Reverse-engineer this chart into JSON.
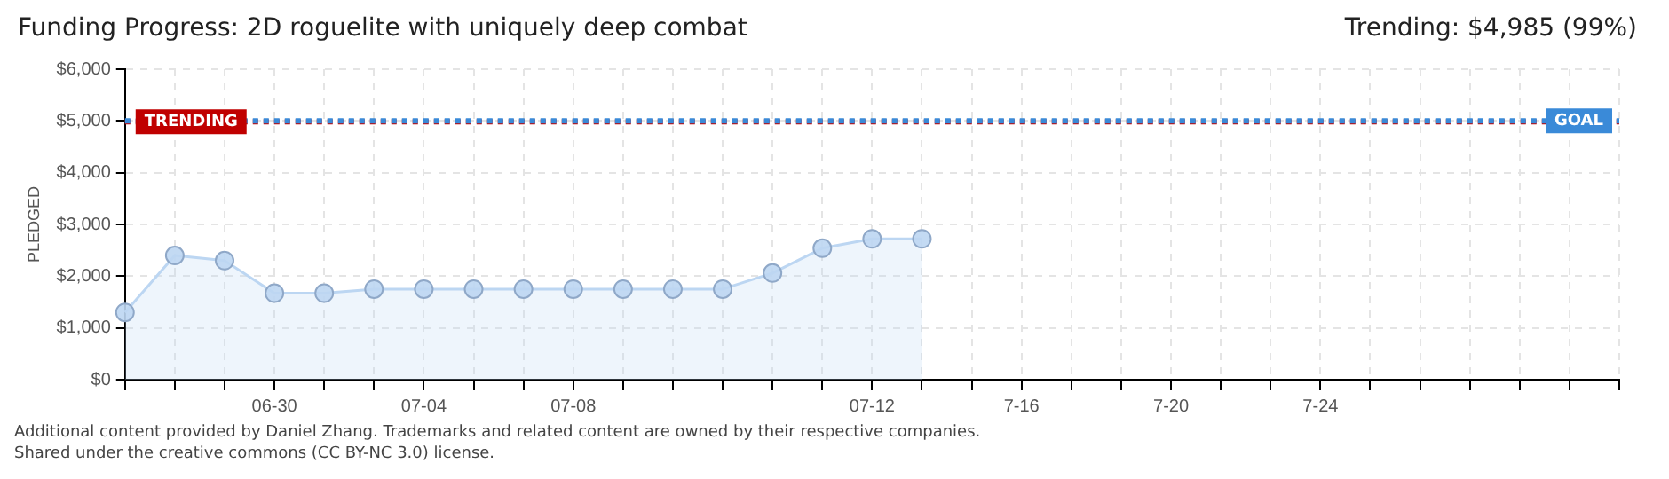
{
  "chart_data": {
    "type": "area",
    "title": "Funding Progress: 2D roguelite with uniquely deep combat",
    "ylabel": "PLEDGED",
    "categories": [
      null,
      null,
      null,
      "06-30",
      null,
      null,
      "07-04",
      null,
      null,
      "07-08",
      null,
      null,
      null,
      null,
      null,
      "07-12",
      null,
      null,
      "7-16",
      null,
      null,
      "7-20",
      null,
      null,
      "7-24",
      null,
      null,
      null,
      null,
      null,
      null
    ],
    "series": [
      {
        "color": "#bcd6f2",
        "values": [
          1300,
          2400,
          2300,
          1670,
          1670,
          1750,
          1750,
          1750,
          1750,
          1750,
          1750,
          1750,
          1750,
          2060,
          2540,
          2720,
          2720,
          null,
          null,
          null,
          null,
          null,
          null,
          null,
          null,
          null,
          null,
          null,
          null,
          null,
          null
        ]
      }
    ],
    "ylim": [
      0,
      6000
    ],
    "yticks": [
      {
        "value": 0,
        "label": "$0"
      },
      {
        "value": 1000,
        "label": "$1,000"
      },
      {
        "value": 2000,
        "label": "$2,000"
      },
      {
        "value": 3000,
        "label": "$3,000"
      },
      {
        "value": 4000,
        "label": "$4,000"
      },
      {
        "value": 5000,
        "label": "$5,000"
      },
      {
        "value": 6000,
        "label": "$6,000"
      }
    ],
    "ref_lines": [
      {
        "axis": "y",
        "value": 4985,
        "label": "TRENDING",
        "color": "#c00000",
        "line_style": "dotted"
      },
      {
        "axis": "y",
        "value": 5000,
        "label": "GOAL",
        "color": "#3a8ad8",
        "line_style": "dotted"
      }
    ],
    "annotations": [
      "Trending: $4,985 (99%)",
      "Additional content provided by Daniel Zhang. Trademarks and related content are owned by their respective companies.",
      "Shared under the creative commons (CC BY-NC 3.0) license."
    ],
    "grid": true,
    "marker": "circle",
    "legend": false
  }
}
